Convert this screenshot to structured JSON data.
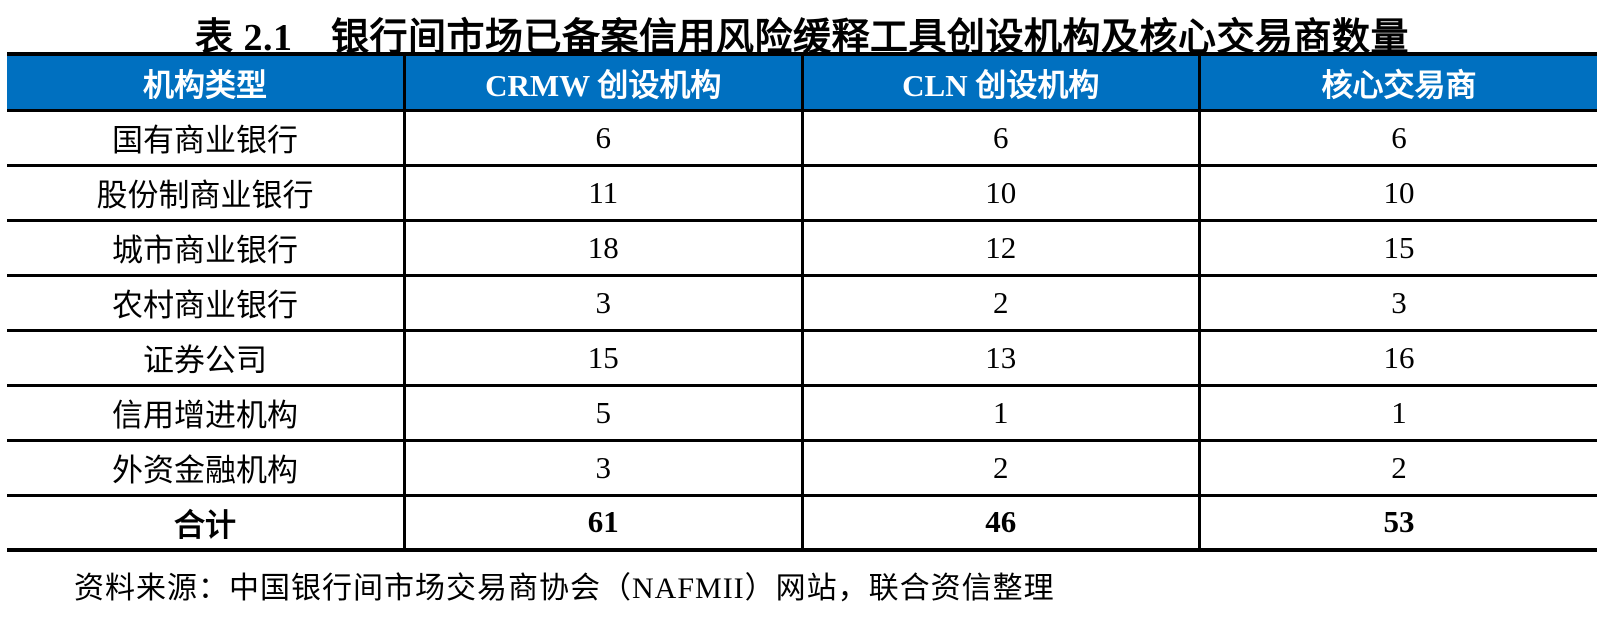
{
  "title": "表 2.1　银行间市场已备案信用风险缓释工具创设机构及核心交易商数量",
  "source_note": "资料来源：中国银行间市场交易商协会（NAFMII）网站，联合资信整理",
  "colors": {
    "header_bg": "#0070C0",
    "header_text": "#FFFFFF",
    "border": "#000000",
    "body_text": "#000000",
    "page_bg": "#FFFFFF"
  },
  "chart_data": {
    "type": "table",
    "title": "表 2.1　银行间市场已备案信用风险缓释工具创设机构及核心交易商数量",
    "columns": [
      "机构类型",
      "CRMW 创设机构",
      "CLN 创设机构",
      "核心交易商"
    ],
    "rows": [
      {
        "cells": [
          "国有商业银行",
          "6",
          "6",
          "6"
        ],
        "bold": false
      },
      {
        "cells": [
          "股份制商业银行",
          "11",
          "10",
          "10"
        ],
        "bold": false
      },
      {
        "cells": [
          "城市商业银行",
          "18",
          "12",
          "15"
        ],
        "bold": false
      },
      {
        "cells": [
          "农村商业银行",
          "3",
          "2",
          "3"
        ],
        "bold": false
      },
      {
        "cells": [
          "证券公司",
          "15",
          "13",
          "16"
        ],
        "bold": false
      },
      {
        "cells": [
          "信用增进机构",
          "5",
          "1",
          "1"
        ],
        "bold": false
      },
      {
        "cells": [
          "外资金融机构",
          "3",
          "2",
          "2"
        ],
        "bold": false
      },
      {
        "cells": [
          "合计",
          "61",
          "46",
          "53"
        ],
        "bold": true
      }
    ]
  }
}
